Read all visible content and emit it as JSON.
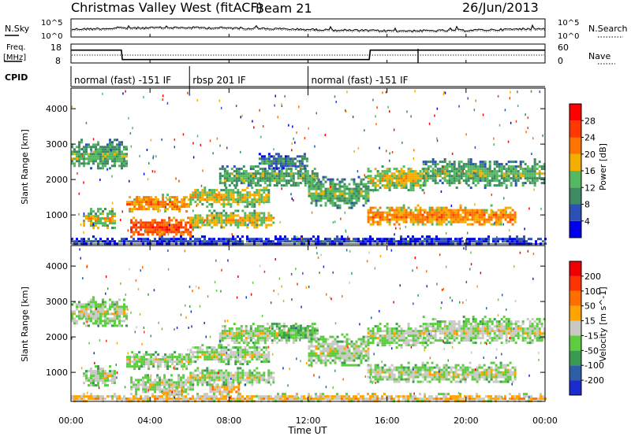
{
  "header": {
    "title": "Christmas Valley West (fitACF)",
    "beam": "Beam 21",
    "date": "26/Jun/2013"
  },
  "noise_panel": {
    "left_label": "N.Sky",
    "right_label": "N.Search",
    "left_ticks": [
      "10^5",
      "10^0"
    ],
    "right_ticks": [
      "10^5",
      "10^0"
    ]
  },
  "freq_panel": {
    "left_label_line1": "Freq.",
    "left_label_line2": "[MHz]",
    "right_label": "Nave",
    "left_ticks": [
      "18",
      "8"
    ],
    "right_ticks": [
      "60",
      "0"
    ]
  },
  "cpid": {
    "label": "CPID",
    "segments": [
      {
        "text": "normal (fast) -151 IF",
        "start": 0,
        "end": 6
      },
      {
        "text": "rbsp 201 IF",
        "start": 6,
        "end": 12
      },
      {
        "text": "normal (fast) -151 IF",
        "start": 12,
        "end": 24
      }
    ]
  },
  "xaxis": {
    "label": "Time UT",
    "ticks": [
      0,
      4,
      8,
      12,
      16,
      20,
      24
    ],
    "tick_labels": [
      "00:00",
      "04:00",
      "08:00",
      "12:00",
      "16:00",
      "20:00",
      "00:00"
    ],
    "range": [
      0,
      24
    ]
  },
  "chart_data": [
    {
      "type": "heatmap",
      "name": "power",
      "ylabel": "Slant Range [km]",
      "ylim": [
        180,
        4580
      ],
      "yticks": [
        1000,
        2000,
        3000,
        4000
      ],
      "colorbar_label": "Power [dB]",
      "colorbar_ticks": [
        "4",
        "8",
        "12",
        "16",
        "20",
        "24",
        "28"
      ],
      "colors": [
        "#0000ee",
        "#2d50b4",
        "#3e8a62",
        "#53b860",
        "#f4ae00",
        "#ff7400",
        "#ff3800",
        "#ff0000"
      ],
      "bands": [
        {
          "t0": 0.0,
          "t1": 2.8,
          "r0": 2300,
          "r1": 3150,
          "level": 3
        },
        {
          "t0": 0.6,
          "t1": 2.2,
          "r0": 600,
          "r1": 1200,
          "level": 4
        },
        {
          "t0": 2.8,
          "t1": 6.0,
          "r0": 1100,
          "r1": 1600,
          "level": 5
        },
        {
          "t0": 3.0,
          "t1": 6.2,
          "r0": 400,
          "r1": 950,
          "level": 6
        },
        {
          "t0": 6.0,
          "t1": 10.2,
          "r0": 650,
          "r1": 1150,
          "level": 4
        },
        {
          "t0": 6.0,
          "t1": 10.0,
          "r0": 1250,
          "r1": 1800,
          "level": 4
        },
        {
          "t0": 7.5,
          "t1": 12.5,
          "r0": 1800,
          "r1": 2400,
          "level": 3
        },
        {
          "t0": 9.5,
          "t1": 12.0,
          "r0": 2300,
          "r1": 2750,
          "level": 2
        },
        {
          "t0": 12.0,
          "t1": 15.0,
          "r0": 1200,
          "r1": 2100,
          "level": 3
        },
        {
          "t0": 15.0,
          "t1": 22.5,
          "r0": 700,
          "r1": 1300,
          "level": 5
        },
        {
          "t0": 15.0,
          "t1": 18.0,
          "r0": 1700,
          "r1": 2400,
          "level": 4
        },
        {
          "t0": 17.8,
          "t1": 24.0,
          "r0": 1800,
          "r1": 2600,
          "level": 3
        },
        {
          "t0": 0.0,
          "t1": 24.0,
          "r0": 180,
          "r1": 420,
          "level": 1
        }
      ]
    },
    {
      "type": "heatmap",
      "name": "velocity",
      "ylabel": "Slant Range [km]",
      "ylim": [
        180,
        4580
      ],
      "yticks": [
        1000,
        2000,
        3000,
        4000
      ],
      "colorbar_label": "Velocity [m s^-1]",
      "colorbar_ticks": [
        "200",
        "100",
        "50",
        "15",
        "-15",
        "-50",
        "-100",
        "-200"
      ],
      "colors": [
        "#1a2bd0",
        "#2e5ea8",
        "#3b9a52",
        "#5ccc40",
        "#c9c9c4",
        "#ffa300",
        "#ff6f00",
        "#ff3300",
        "#ee0000"
      ],
      "bands": [
        {
          "t0": 0.0,
          "t1": 2.8,
          "r0": 2300,
          "r1": 3150,
          "level": 4
        },
        {
          "t0": 0.6,
          "t1": 2.2,
          "r0": 600,
          "r1": 1200,
          "level": 4
        },
        {
          "t0": 2.8,
          "t1": 6.0,
          "r0": 1100,
          "r1": 1600,
          "level": 4
        },
        {
          "t0": 3.0,
          "t1": 6.2,
          "r0": 400,
          "r1": 950,
          "level": 4
        },
        {
          "t0": 4.6,
          "t1": 5.6,
          "r0": 350,
          "r1": 650,
          "level": 5
        },
        {
          "t0": 7.0,
          "t1": 8.5,
          "r0": 350,
          "r1": 750,
          "level": 5
        },
        {
          "t0": 6.0,
          "t1": 10.2,
          "r0": 650,
          "r1": 1150,
          "level": 4
        },
        {
          "t0": 6.0,
          "t1": 10.0,
          "r0": 1250,
          "r1": 1800,
          "level": 4
        },
        {
          "t0": 7.5,
          "t1": 12.5,
          "r0": 1800,
          "r1": 2400,
          "level": 4
        },
        {
          "t0": 10.5,
          "t1": 12.5,
          "r0": 1950,
          "r1": 2350,
          "level": 3
        },
        {
          "t0": 12.0,
          "t1": 15.0,
          "r0": 1200,
          "r1": 2100,
          "level": 4
        },
        {
          "t0": 15.0,
          "t1": 22.5,
          "r0": 700,
          "r1": 1300,
          "level": 4
        },
        {
          "t0": 15.0,
          "t1": 18.0,
          "r0": 1700,
          "r1": 2400,
          "level": 4
        },
        {
          "t0": 17.8,
          "t1": 24.0,
          "r0": 1800,
          "r1": 2600,
          "level": 4
        },
        {
          "t0": 0.0,
          "t1": 24.0,
          "r0": 180,
          "r1": 420,
          "level": 5
        }
      ]
    },
    {
      "type": "line",
      "name": "frequency",
      "x": [
        0,
        2.55,
        2.6,
        15.1,
        15.15,
        24
      ],
      "values": [
        14.8,
        14.8,
        9.8,
        9.8,
        14.8,
        14.8
      ],
      "ylim": [
        8,
        18
      ]
    }
  ]
}
